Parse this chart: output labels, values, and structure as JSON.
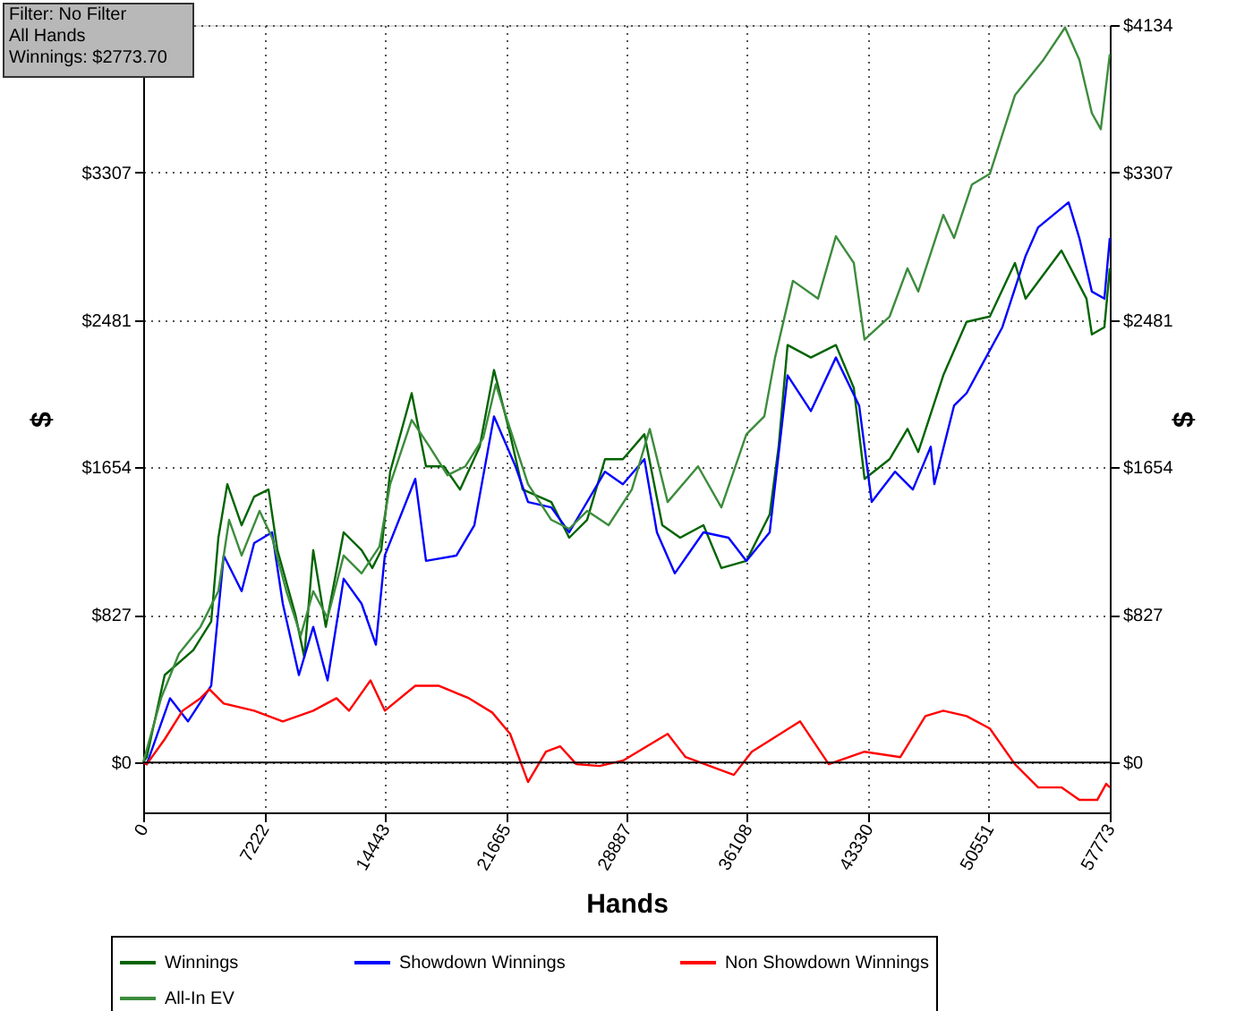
{
  "chart_data": {
    "type": "line",
    "xlabel": "Hands",
    "ylabel": "$",
    "y2label": "$",
    "annotations": [
      "Filter: No Filter",
      "All Hands",
      "Winnings: $2773.70"
    ],
    "xlim": [
      0,
      57773
    ],
    "xticks": [
      0,
      7222,
      14443,
      21665,
      28887,
      36108,
      43330,
      50551,
      57773
    ],
    "ylim": [
      -280,
      4134
    ],
    "yticks": [
      {
        "value": 0,
        "label": "$0"
      },
      {
        "value": 827,
        "label": "$827"
      },
      {
        "value": 1654,
        "label": "$1654"
      },
      {
        "value": 2481,
        "label": "$2481"
      },
      {
        "value": 3307,
        "label": "$3307"
      },
      {
        "value": 4134,
        "label": null
      }
    ],
    "y2lim": [
      -280,
      4134
    ],
    "y2ticks": [
      {
        "value": 0,
        "label": "$0"
      },
      {
        "value": 827,
        "label": "$827"
      },
      {
        "value": 1654,
        "label": "$1654"
      },
      {
        "value": 2481,
        "label": "$2481"
      },
      {
        "value": 3307,
        "label": "$3307"
      },
      {
        "value": 4134,
        "label": "$4134"
      }
    ],
    "grid": true,
    "legend": "bottom",
    "marker": "none",
    "line_style": "solid",
    "ref_lines": [
      {
        "axis": "y",
        "value": 0,
        "color": "#000000"
      }
    ],
    "series": [
      {
        "name": "Winnings",
        "color": "#006400",
        "x": [
          0,
          214,
          1284,
          2995,
          4065,
          4493,
          5028,
          5884,
          6633,
          7489,
          8023,
          9093,
          9628,
          10163,
          10912,
          11982,
          13052,
          13693,
          14228,
          14763,
          16047,
          16903,
          17973,
          18935,
          20112,
          20968,
          21931,
          22680,
          24391,
          25461,
          26531,
          27601,
          28671,
          29955,
          31024,
          32094,
          33485,
          34555,
          36053,
          37444,
          37979,
          38514,
          39905,
          41402,
          42472,
          43114,
          44612,
          45682,
          46323,
          47821,
          49212,
          50603,
          52101,
          52743,
          54882,
          56380,
          56701,
          57450,
          57773
        ],
        "values": [
          0,
          30,
          490,
          630,
          790,
          1260,
          1560,
          1330,
          1490,
          1530,
          1190,
          830,
          590,
          1190,
          760,
          1290,
          1190,
          1090,
          1190,
          1630,
          2070,
          1660,
          1660,
          1530,
          1770,
          2200,
          1840,
          1530,
          1460,
          1260,
          1360,
          1700,
          1700,
          1840,
          1330,
          1260,
          1330,
          1090,
          1130,
          1390,
          1770,
          2340,
          2270,
          2340,
          2100,
          1590,
          1700,
          1870,
          1740,
          2170,
          2470,
          2500,
          2800,
          2600,
          2870,
          2600,
          2400,
          2440,
          2770
        ]
      },
      {
        "name": "Showdown Winnings",
        "color": "#0000ff",
        "x": [
          0,
          214,
          1605,
          2675,
          4065,
          4814,
          5884,
          6633,
          7703,
          8344,
          9307,
          10163,
          11019,
          11982,
          13052,
          13907,
          14442,
          16261,
          16903,
          18722,
          19792,
          20968,
          22252,
          23001,
          24391,
          25461,
          27601,
          28671,
          29955,
          30704,
          31774,
          33485,
          34983,
          36053,
          37444,
          38514,
          39905,
          41402,
          42793,
          43542,
          44933,
          46002,
          47072,
          47286,
          48463,
          49212,
          49961,
          51352,
          52743,
          53492,
          55310,
          55952,
          56701,
          57450,
          57773
        ],
        "values": [
          0,
          -10,
          360,
          230,
          430,
          1160,
          960,
          1230,
          1290,
          890,
          490,
          760,
          460,
          1030,
          890,
          660,
          1160,
          1590,
          1130,
          1160,
          1330,
          1940,
          1660,
          1460,
          1430,
          1290,
          1630,
          1560,
          1700,
          1290,
          1060,
          1290,
          1260,
          1130,
          1290,
          2170,
          1970,
          2270,
          2000,
          1460,
          1630,
          1530,
          1770,
          1560,
          2000,
          2070,
          2200,
          2440,
          2840,
          3000,
          3140,
          2940,
          2640,
          2600,
          2940
        ]
      },
      {
        "name": "Non Showdown Winnings",
        "color": "#ff0000",
        "x": [
          0,
          214,
          1284,
          2354,
          3423,
          3958,
          4814,
          6633,
          8344,
          10163,
          11554,
          12303,
          13586,
          14442,
          16261,
          17652,
          19470,
          20861,
          21931,
          23001,
          24071,
          24927,
          25890,
          27280,
          28671,
          31346,
          32416,
          35304,
          36374,
          39263,
          40975,
          43114,
          45254,
          46751,
          47821,
          49212,
          50603,
          52101,
          53492,
          54882,
          55952,
          57022,
          57557,
          57773
        ],
        "values": [
          0,
          -10,
          130,
          290,
          360,
          410,
          330,
          290,
          230,
          290,
          360,
          290,
          460,
          290,
          430,
          430,
          360,
          280,
          160,
          -110,
          60,
          90,
          -10,
          -20,
          10,
          160,
          30,
          -70,
          60,
          230,
          -10,
          60,
          30,
          260,
          290,
          260,
          190,
          -10,
          -140,
          -140,
          -210,
          -210,
          -120,
          -140
        ]
      },
      {
        "name": "All-In EV",
        "color": "#3c8c3c",
        "x": [
          0,
          1070,
          2140,
          3423,
          4493,
          5135,
          5884,
          6954,
          7703,
          8559,
          9414,
          10163,
          11019,
          11982,
          13052,
          14121,
          14763,
          16047,
          17117,
          18187,
          19257,
          20326,
          21075,
          21931,
          23001,
          24391,
          25461,
          26531,
          27815,
          29206,
          30276,
          31346,
          33165,
          34555,
          36053,
          37123,
          37765,
          38835,
          40333,
          41402,
          42472,
          43114,
          44612,
          45682,
          46323,
          47821,
          48463,
          49533,
          50603,
          52101,
          53813,
          55097,
          55952,
          56701,
          57236,
          57773
        ],
        "values": [
          0,
          360,
          610,
          760,
          960,
          1360,
          1160,
          1410,
          1260,
          960,
          710,
          960,
          810,
          1160,
          1060,
          1210,
          1560,
          1920,
          1770,
          1610,
          1660,
          1820,
          2120,
          1870,
          1560,
          1360,
          1310,
          1410,
          1330,
          1530,
          1870,
          1460,
          1660,
          1430,
          1840,
          1940,
          2270,
          2700,
          2600,
          2950,
          2800,
          2370,
          2500,
          2770,
          2640,
          3070,
          2940,
          3240,
          3300,
          3740,
          3940,
          4120,
          3940,
          3640,
          3550,
          3970
        ]
      }
    ]
  }
}
